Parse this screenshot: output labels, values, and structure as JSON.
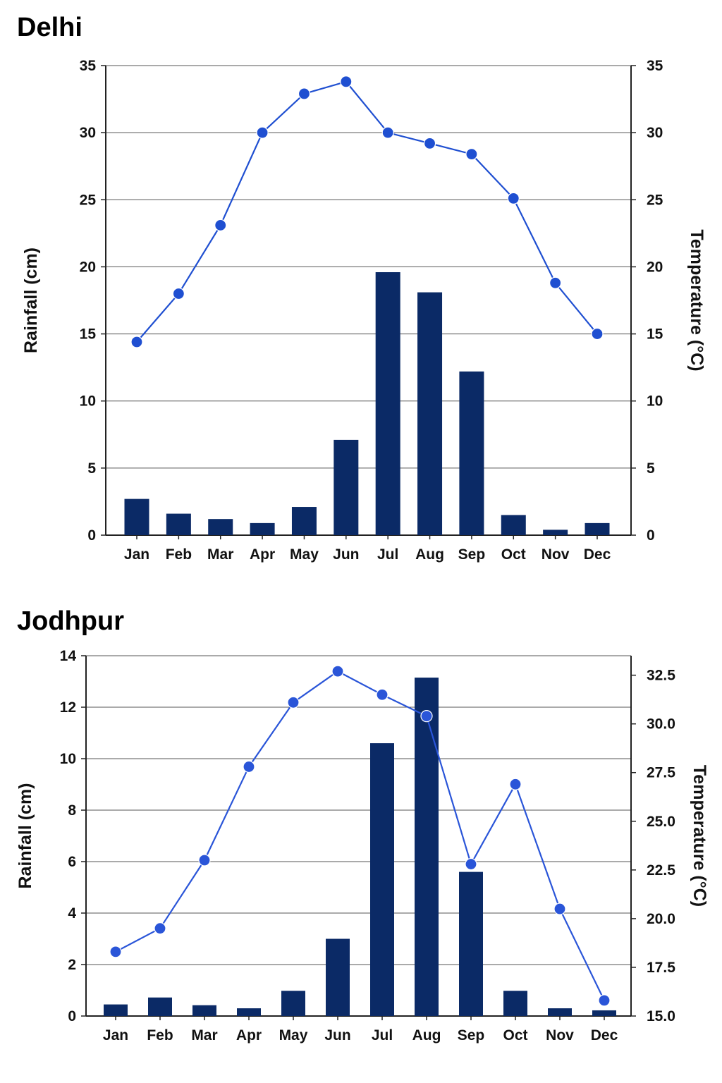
{
  "chart_data": [
    {
      "type": "bar",
      "title": "Delhi",
      "categories": [
        "Jan",
        "Feb",
        "Mar",
        "Apr",
        "May",
        "Jun",
        "Jul",
        "Aug",
        "Sep",
        "Oct",
        "Nov",
        "Dec"
      ],
      "series": [
        {
          "name": "Rainfall",
          "type": "bar",
          "axis": "left",
          "values": [
            2.7,
            1.6,
            1.2,
            0.9,
            2.1,
            7.1,
            19.6,
            18.1,
            12.2,
            1.5,
            0.4,
            0.9
          ]
        },
        {
          "name": "Temperature",
          "type": "line",
          "axis": "right",
          "values": [
            14.4,
            18.0,
            23.1,
            30.0,
            32.9,
            33.8,
            30.0,
            29.2,
            28.4,
            25.1,
            18.8,
            15.0
          ]
        }
      ],
      "ylabel": "Rainfall (cm)",
      "ylabel_right": "Temperature (°C)",
      "ylim": [
        0,
        35
      ],
      "ylim_right": [
        0,
        35
      ],
      "yticks": [
        "0",
        "5",
        "10",
        "15",
        "20",
        "25",
        "30",
        "35"
      ],
      "yticks_right": [
        "0",
        "5",
        "10",
        "15",
        "20",
        "25",
        "30",
        "35"
      ],
      "grid": true,
      "colors": {
        "bar": "#0b2a66",
        "line": "#1f4fd1"
      }
    },
    {
      "type": "bar",
      "title": "Jodhpur",
      "categories": [
        "Jan",
        "Feb",
        "Mar",
        "Apr",
        "May",
        "Jun",
        "Jul",
        "Aug",
        "Sep",
        "Oct",
        "Nov",
        "Dec"
      ],
      "series": [
        {
          "name": "Rainfall",
          "type": "bar",
          "axis": "left",
          "values": [
            0.45,
            0.72,
            0.42,
            0.3,
            0.98,
            3.0,
            10.6,
            13.15,
            5.6,
            0.98,
            0.3,
            0.22
          ]
        },
        {
          "name": "Temperature",
          "type": "line",
          "axis": "right",
          "values": [
            18.3,
            19.5,
            23.0,
            27.8,
            31.1,
            32.7,
            31.5,
            30.4,
            22.8,
            26.9,
            20.5,
            15.8
          ]
        }
      ],
      "ylabel": "Rainfall (cm)",
      "ylabel_right": "Temperature (°C)",
      "ylim": [
        0,
        14
      ],
      "ylim_right": [
        15.0,
        33.5
      ],
      "yticks": [
        "0",
        "2",
        "4",
        "6",
        "8",
        "10",
        "12",
        "14"
      ],
      "yticks_right": [
        "15.0",
        "17.5",
        "20.0",
        "22.5",
        "25.0",
        "27.5",
        "30.0",
        "32.5"
      ],
      "grid": true,
      "colors": {
        "bar": "#0b2a66",
        "line": "#2a55d8"
      }
    }
  ]
}
